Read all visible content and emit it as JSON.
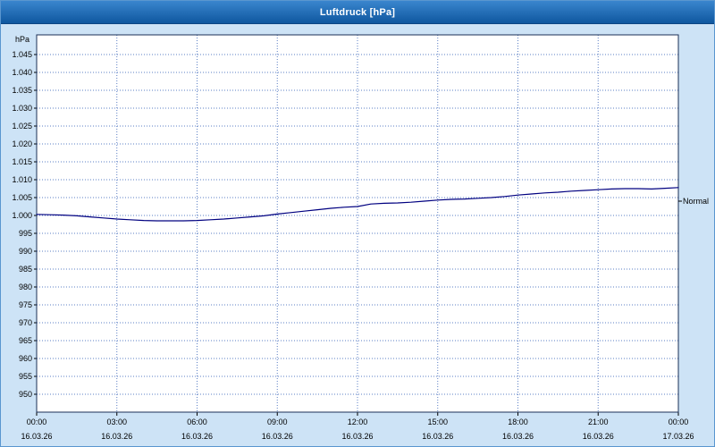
{
  "window": {
    "title": "Luftdruck [hPa]"
  },
  "chart_data": {
    "type": "line",
    "title": "Luftdruck [hPa]",
    "xlabel": "",
    "ylabel": "hPa",
    "ylim": [
      945,
      1050.5
    ],
    "xlim": [
      0,
      24
    ],
    "grid": true,
    "grid_color": "#5b7fc4",
    "frame_color": "#1a2f55",
    "background_color": "#ffffff",
    "page_background": "#cde3f6",
    "y_ticks": [
      {
        "value": 1045,
        "label": "1.045"
      },
      {
        "value": 1040,
        "label": "1.040"
      },
      {
        "value": 1035,
        "label": "1.035"
      },
      {
        "value": 1030,
        "label": "1.030"
      },
      {
        "value": 1025,
        "label": "1.025"
      },
      {
        "value": 1020,
        "label": "1.020"
      },
      {
        "value": 1015,
        "label": "1.015"
      },
      {
        "value": 1010,
        "label": "1.010"
      },
      {
        "value": 1005,
        "label": "1.005"
      },
      {
        "value": 1000,
        "label": "1.000"
      },
      {
        "value": 995,
        "label": "995"
      },
      {
        "value": 990,
        "label": "990"
      },
      {
        "value": 985,
        "label": "985"
      },
      {
        "value": 980,
        "label": "980"
      },
      {
        "value": 975,
        "label": "975"
      },
      {
        "value": 970,
        "label": "970"
      },
      {
        "value": 965,
        "label": "965"
      },
      {
        "value": 960,
        "label": "960"
      },
      {
        "value": 955,
        "label": "955"
      },
      {
        "value": 950,
        "label": "950"
      }
    ],
    "x_ticks": [
      {
        "hour": 0,
        "time": "00:00",
        "date": "16.03.26"
      },
      {
        "hour": 3,
        "time": "03:00",
        "date": "16.03.26"
      },
      {
        "hour": 6,
        "time": "06:00",
        "date": "16.03.26"
      },
      {
        "hour": 9,
        "time": "09:00",
        "date": "16.03.26"
      },
      {
        "hour": 12,
        "time": "12:00",
        "date": "16.03.26"
      },
      {
        "hour": 15,
        "time": "15:00",
        "date": "16.03.26"
      },
      {
        "hour": 18,
        "time": "18:00",
        "date": "16.03.26"
      },
      {
        "hour": 21,
        "time": "21:00",
        "date": "16.03.26"
      },
      {
        "hour": 24,
        "time": "00:00",
        "date": "17.03.26"
      }
    ],
    "series": [
      {
        "name": "Luftdruck",
        "color": "#000080",
        "x": [
          0,
          0.5,
          1,
          1.5,
          2,
          2.5,
          3,
          3.5,
          4,
          4.5,
          5,
          5.5,
          6,
          6.5,
          7,
          7.5,
          8,
          8.5,
          9,
          9.5,
          10,
          10.5,
          11,
          11.5,
          12,
          12.5,
          13,
          13.5,
          14,
          14.5,
          15,
          15.5,
          16,
          16.5,
          17,
          17.5,
          18,
          18.5,
          19,
          19.5,
          20,
          20.5,
          21,
          21.5,
          22,
          22.5,
          23,
          23.5,
          24
        ],
        "y": [
          1000.3,
          1000.2,
          1000.1,
          999.9,
          999.6,
          999.3,
          999.0,
          998.8,
          998.6,
          998.5,
          998.5,
          998.5,
          998.6,
          998.8,
          999.0,
          999.3,
          999.6,
          999.9,
          1000.4,
          1000.8,
          1001.2,
          1001.6,
          1002.0,
          1002.3,
          1002.5,
          1003.2,
          1003.4,
          1003.5,
          1003.7,
          1004.0,
          1004.3,
          1004.5,
          1004.6,
          1004.8,
          1005.0,
          1005.3,
          1005.7,
          1006.0,
          1006.3,
          1006.5,
          1006.8,
          1007.0,
          1007.2,
          1007.4,
          1007.5,
          1007.5,
          1007.4,
          1007.6,
          1007.8
        ]
      }
    ],
    "normal_marker": {
      "label": "Normal",
      "value": 1004
    }
  }
}
